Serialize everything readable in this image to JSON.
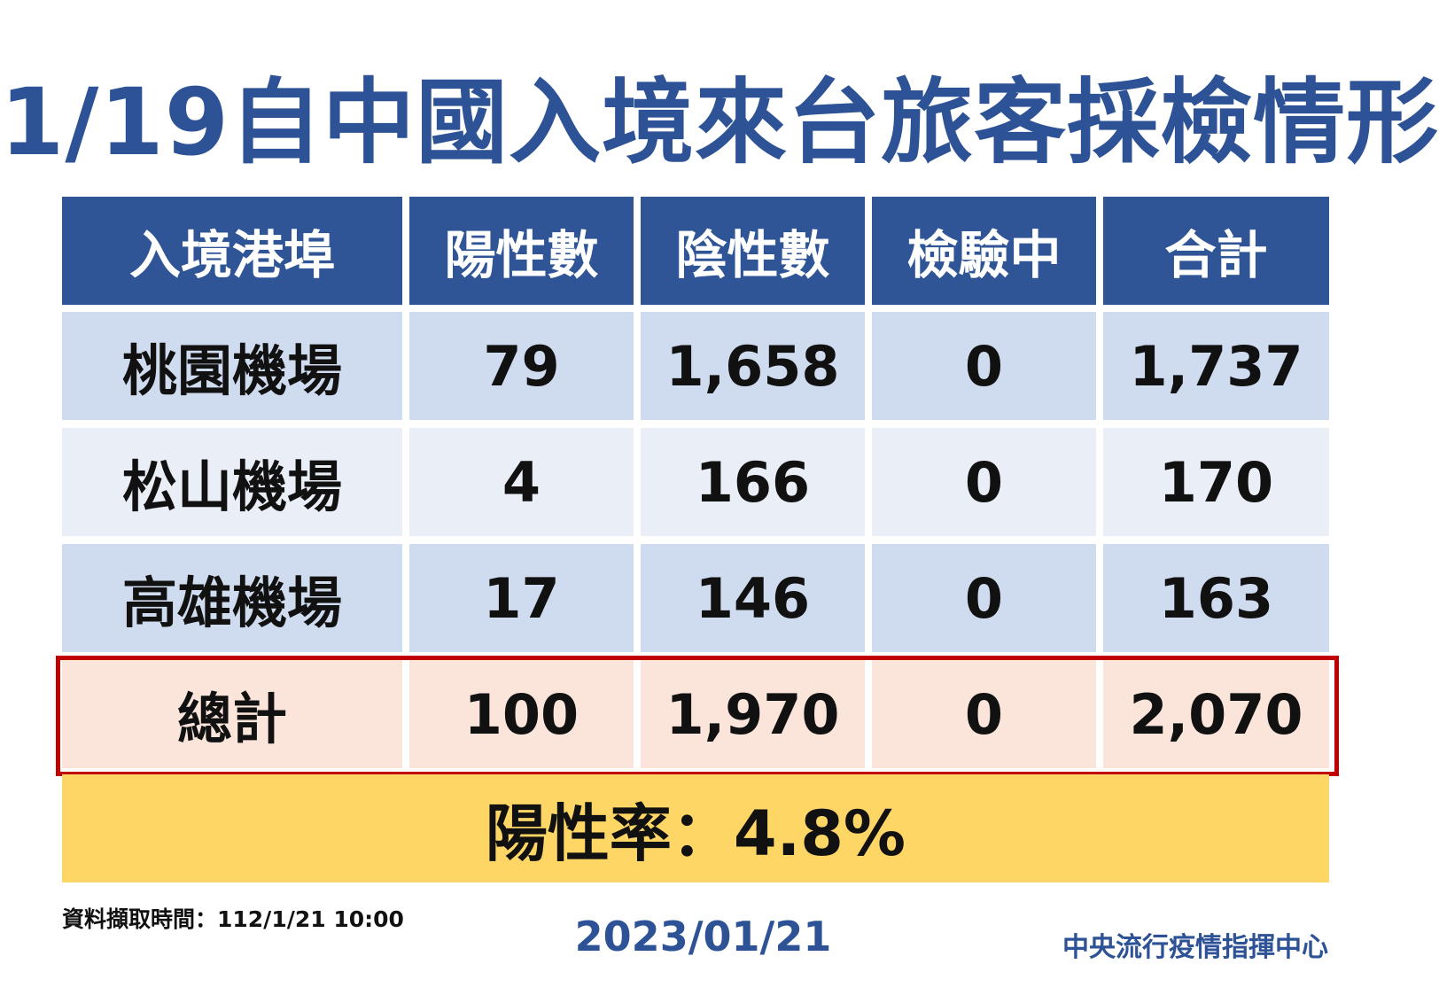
{
  "title": "1/19自中國入境來台旅客採檢情形",
  "table": {
    "headers": [
      "入境港埠",
      "陽性數",
      "陰性數",
      "檢驗中",
      "合計"
    ],
    "rows": [
      [
        "桃園機場",
        "79",
        "1,658",
        "0",
        "1,737"
      ],
      [
        "松山機場",
        "4",
        "166",
        "0",
        "170"
      ],
      [
        "高雄機場",
        "17",
        "146",
        "0",
        "163"
      ]
    ],
    "total": [
      "總計",
      "100",
      "1,970",
      "0",
      "2,070"
    ]
  },
  "positive_rate": "陽性率：4.8%",
  "footer": {
    "data_time": "資料擷取時間：112/1/21 10:00",
    "date": "2023/01/21",
    "organization": "中央流行疫情指揮中心"
  },
  "colors": {
    "title": "#2d5295",
    "header_bg": "#2f5597",
    "row_dark": "#cfdbee",
    "row_light": "#e9eef7",
    "total_bg": "#fbe5da",
    "total_border": "#c00000",
    "rate_bg": "#fdd665"
  }
}
